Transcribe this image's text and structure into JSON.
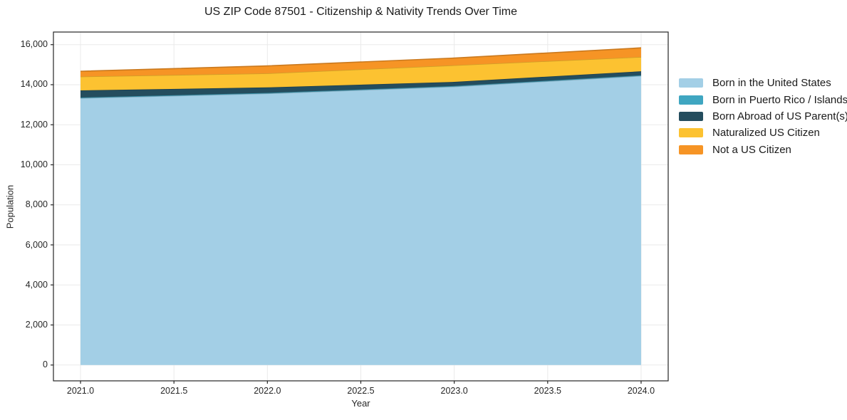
{
  "chart_data": {
    "type": "area",
    "stacked": true,
    "title": "US ZIP Code 87501 - Citizenship & Nativity Trends Over Time",
    "xlabel": "Year",
    "ylabel": "Population",
    "x": [
      2021,
      2022,
      2023,
      2024
    ],
    "series": [
      {
        "name": "Born in the United States",
        "color": "#a3cfe6",
        "values": [
          13330,
          13560,
          13905,
          14440
        ]
      },
      {
        "name": "Born in Puerto Rico / Islands",
        "color": "#3fa6c1",
        "values": [
          30,
          30,
          30,
          30
        ]
      },
      {
        "name": "Born Abroad of US Parent(s)",
        "color": "#244d5e",
        "values": [
          355,
          275,
          205,
          200
        ]
      },
      {
        "name": "Naturalized US Citizen",
        "color": "#fcc231",
        "values": [
          690,
          700,
          830,
          715
        ]
      },
      {
        "name": "Not a US Citizen",
        "color": "#f69425",
        "values": [
          265,
          375,
          360,
          455
        ]
      }
    ],
    "totals_by_year": [
      14670,
      14940,
      15330,
      15840
    ],
    "xlim": [
      2020.855,
      2024.145
    ],
    "ylim": [
      -790,
      16630
    ],
    "xticks": {
      "values": [
        2021.0,
        2021.5,
        2022.0,
        2022.5,
        2023.0,
        2023.5,
        2024.0
      ],
      "labels": [
        "2021.0",
        "2021.5",
        "2022.0",
        "2022.5",
        "2023.0",
        "2023.5",
        "2024.0"
      ]
    },
    "yticks": {
      "values": [
        0,
        2000,
        4000,
        6000,
        8000,
        10000,
        12000,
        14000,
        16000
      ],
      "labels": [
        "0",
        "2,000",
        "4,000",
        "6,000",
        "8,000",
        "10,000",
        "12,000",
        "14,000",
        "16,000"
      ]
    },
    "grid": true,
    "grid_color": "#eaeaea",
    "spine_color": "#262626",
    "background_color": "#ffffff",
    "legend_position": "right-outside"
  }
}
